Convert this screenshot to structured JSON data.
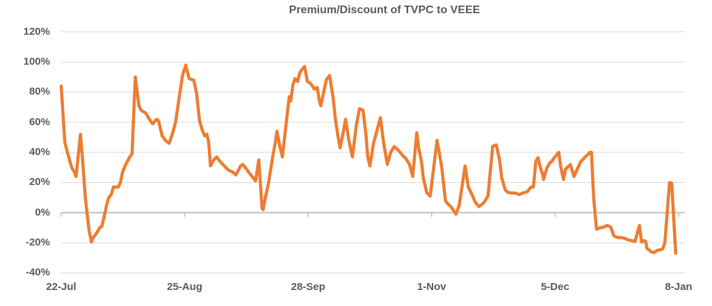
{
  "title": "Premium/Discount of TVPC to VEEE",
  "colors": {
    "line": "#ED7D31",
    "text": "#595959",
    "gridline": "#D9D9D9",
    "axis": "#BFBFBF",
    "background": "#FFFFFF"
  },
  "chart_data": {
    "type": "line",
    "title": "Premium/Discount of TVPC to VEEE",
    "series_name": "Premium/Discount of TVPC to VEEE",
    "unit": "%",
    "xlabel": "",
    "ylabel": "",
    "ylim": [
      -40,
      120
    ],
    "ytick_step": 20,
    "ytick_labels": [
      "120%",
      "100%",
      "80%",
      "60%",
      "40%",
      "20%",
      "0%",
      "-20%",
      "-40%"
    ],
    "xtick_labels": [
      "22-Jul",
      "25-Aug",
      "28-Sep",
      "1-Nov",
      "5-Dec",
      "8-Jan"
    ],
    "xtick_days": [
      0,
      34,
      68,
      102,
      136,
      170
    ],
    "x_unit": "days since 22-Jul",
    "grid": "horizontal",
    "legend": "none",
    "points": [
      [
        0,
        84
      ],
      [
        1,
        47
      ],
      [
        1.7,
        40
      ],
      [
        2.3,
        35
      ],
      [
        2.9,
        30
      ],
      [
        3.6,
        27
      ],
      [
        4.1,
        24
      ],
      [
        5.3,
        52
      ],
      [
        5.8,
        38
      ],
      [
        6.1,
        28
      ],
      [
        6.4,
        18
      ],
      [
        6.7,
        9
      ],
      [
        7.1,
        0
      ],
      [
        7.4,
        -6
      ],
      [
        7.7,
        -12
      ],
      [
        8.3,
        -19.5
      ],
      [
        8.7,
        -17
      ],
      [
        9.3,
        -15
      ],
      [
        9.9,
        -13
      ],
      [
        10.6,
        -10
      ],
      [
        11.2,
        -9
      ],
      [
        11.8,
        -3
      ],
      [
        12.5,
        5
      ],
      [
        13.1,
        10
      ],
      [
        13.8,
        12
      ],
      [
        14.4,
        17
      ],
      [
        15.7,
        17
      ],
      [
        16.3,
        20
      ],
      [
        16.9,
        27
      ],
      [
        17.6,
        31
      ],
      [
        18.2,
        34
      ],
      [
        18.9,
        37
      ],
      [
        19.5,
        39
      ],
      [
        20.4,
        90
      ],
      [
        21.4,
        71
      ],
      [
        22,
        68
      ],
      [
        23.3,
        66
      ],
      [
        24.3,
        62
      ],
      [
        25.2,
        59
      ],
      [
        26.3,
        62
      ],
      [
        26.8,
        61
      ],
      [
        27.8,
        51
      ],
      [
        28.7,
        48
      ],
      [
        29.7,
        46
      ],
      [
        30.6,
        52
      ],
      [
        31.5,
        60
      ],
      [
        32.4,
        75
      ],
      [
        33.4,
        91
      ],
      [
        34.3,
        98
      ],
      [
        35.2,
        89
      ],
      [
        36.5,
        88
      ],
      [
        37.3,
        79
      ],
      [
        37.7,
        70
      ],
      [
        38.1,
        61
      ],
      [
        38.8,
        55
      ],
      [
        39.5,
        51
      ],
      [
        40.1,
        52
      ],
      [
        40.6,
        47
      ],
      [
        41.1,
        31
      ],
      [
        42,
        35
      ],
      [
        42.8,
        37
      ],
      [
        43.4,
        35
      ],
      [
        45.3,
        30
      ],
      [
        46.2,
        28
      ],
      [
        47.2,
        27
      ],
      [
        48.1,
        25
      ],
      [
        49.4,
        31
      ],
      [
        50,
        32
      ],
      [
        51,
        29
      ],
      [
        51.9,
        26
      ],
      [
        52.9,
        23
      ],
      [
        53.5,
        21
      ],
      [
        54.4,
        35
      ],
      [
        55.3,
        3
      ],
      [
        55.6,
        2
      ],
      [
        56.3,
        11
      ],
      [
        57.1,
        20
      ],
      [
        57.7,
        29
      ],
      [
        58.3,
        38
      ],
      [
        59,
        47
      ],
      [
        59.4,
        54
      ],
      [
        60.2,
        44
      ],
      [
        60.9,
        37
      ],
      [
        62.8,
        77
      ],
      [
        63.2,
        74
      ],
      [
        63.8,
        85
      ],
      [
        64.4,
        89
      ],
      [
        65.1,
        87
      ],
      [
        65.7,
        93
      ],
      [
        66.3,
        95
      ],
      [
        67,
        97
      ],
      [
        67.8,
        87
      ],
      [
        68.6,
        86
      ],
      [
        69.2,
        84
      ],
      [
        69.7,
        82
      ],
      [
        70.5,
        83
      ],
      [
        71.1,
        74
      ],
      [
        71.5,
        71
      ],
      [
        72,
        77
      ],
      [
        73,
        88
      ],
      [
        73.9,
        91
      ],
      [
        74.9,
        76
      ],
      [
        75.5,
        62
      ],
      [
        76.2,
        51
      ],
      [
        76.8,
        43
      ],
      [
        77.7,
        54
      ],
      [
        78.3,
        62
      ],
      [
        79.2,
        48
      ],
      [
        80.2,
        37
      ],
      [
        81.2,
        57
      ],
      [
        82.1,
        69
      ],
      [
        83.1,
        68
      ],
      [
        83.9,
        52
      ],
      [
        84.4,
        37
      ],
      [
        85,
        31
      ],
      [
        86,
        46
      ],
      [
        87.9,
        63
      ],
      [
        88.8,
        46
      ],
      [
        89.8,
        32
      ],
      [
        90.7,
        40
      ],
      [
        91.7,
        44
      ],
      [
        93,
        41
      ],
      [
        94,
        38
      ],
      [
        94.9,
        36
      ],
      [
        95.9,
        32
      ],
      [
        96.8,
        24
      ],
      [
        97.9,
        53
      ],
      [
        98.5,
        42
      ],
      [
        99.2,
        34
      ],
      [
        99.7,
        23
      ],
      [
        100.7,
        13
      ],
      [
        101.6,
        11
      ],
      [
        103.5,
        48
      ],
      [
        104.8,
        30
      ],
      [
        105.8,
        8
      ],
      [
        106.4,
        6
      ],
      [
        107.3,
        4
      ],
      [
        108.7,
        -1
      ],
      [
        109.6,
        5
      ],
      [
        111.2,
        31
      ],
      [
        112.1,
        17
      ],
      [
        113.1,
        12
      ],
      [
        114,
        7
      ],
      [
        115,
        4
      ],
      [
        115.6,
        5
      ],
      [
        116.5,
        7
      ],
      [
        117.5,
        11
      ],
      [
        118.8,
        44
      ],
      [
        119.8,
        45
      ],
      [
        120.7,
        35
      ],
      [
        121.3,
        23
      ],
      [
        122.3,
        15
      ],
      [
        123,
        13.5
      ],
      [
        124,
        13
      ],
      [
        125.1,
        13
      ],
      [
        126.1,
        12
      ],
      [
        127,
        13
      ],
      [
        128.4,
        14
      ],
      [
        129.3,
        17
      ],
      [
        130,
        17
      ],
      [
        130.7,
        34
      ],
      [
        131.3,
        36.5
      ],
      [
        131.8,
        31
      ],
      [
        132.6,
        25
      ],
      [
        132.8,
        22
      ],
      [
        133.7,
        29.5
      ],
      [
        134.5,
        33
      ],
      [
        135.1,
        34
      ],
      [
        135.6,
        36
      ],
      [
        137,
        40
      ],
      [
        137.5,
        31
      ],
      [
        138.3,
        22
      ],
      [
        138.9,
        29
      ],
      [
        140.2,
        32
      ],
      [
        141.2,
        24
      ],
      [
        142.2,
        29.5
      ],
      [
        143.1,
        34
      ],
      [
        144.1,
        36.5
      ],
      [
        145.6,
        40
      ],
      [
        146,
        40
      ],
      [
        146.6,
        10
      ],
      [
        147.4,
        -11
      ],
      [
        148.4,
        -10
      ],
      [
        149.4,
        -9.5
      ],
      [
        150.3,
        -8.5
      ],
      [
        151.3,
        -9.5
      ],
      [
        152.2,
        -15.5
      ],
      [
        153.2,
        -16.5
      ],
      [
        154.1,
        -16.5
      ],
      [
        155.1,
        -17
      ],
      [
        156,
        -18
      ],
      [
        157,
        -18.5
      ],
      [
        158,
        -19
      ],
      [
        159.2,
        -8.5
      ],
      [
        159.8,
        -19.5
      ],
      [
        160.5,
        -18.5
      ],
      [
        160.9,
        -19
      ],
      [
        161.3,
        -24
      ],
      [
        161.8,
        -24.5
      ],
      [
        162.4,
        -26
      ],
      [
        163.2,
        -26.5
      ],
      [
        164.1,
        -25
      ],
      [
        165.1,
        -24.5
      ],
      [
        165.6,
        -24
      ],
      [
        166.2,
        -20
      ],
      [
        167.5,
        20
      ],
      [
        168.1,
        19.5
      ],
      [
        169.2,
        -27
      ]
    ]
  }
}
